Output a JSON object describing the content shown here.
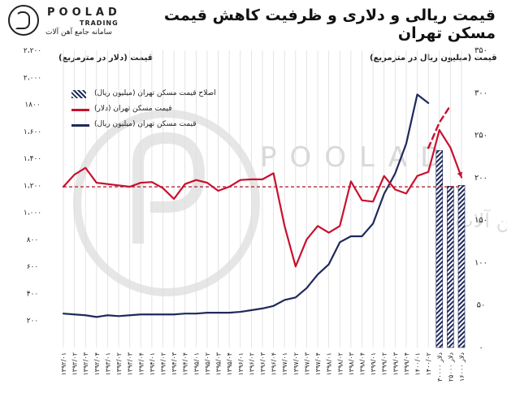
{
  "title": "قیمت ریالی و دلاری و ظرفیت کاهش قیمت مسکن تهران",
  "brand": {
    "name": "POOLAD",
    "sub": "TRADING",
    "tagline": "سامانه جامع آهن آلات",
    "logo_icon": "poolad-logo-icon",
    "watermark_name": "POOLAD",
    "watermark_tagline": "سامانه جامع آهن آلات"
  },
  "colors": {
    "rial": "#1f2a5a",
    "dollar": "#c8102e",
    "reference": "#b3283a",
    "hatch": "#1f2a5a",
    "grid": "#dddddd"
  },
  "chart_data": {
    "type": "line",
    "title": "قیمت ریالی و دلاری و ظرفیت کاهش قیمت مسکن تهران",
    "left_axis": {
      "label": "قیمت (دلار در مترمربع)",
      "ylim": [
        0,
        2200
      ],
      "ticks": [
        0,
        200,
        400,
        600,
        800,
        1000,
        1200,
        1400,
        1600,
        1800,
        2000,
        2200
      ],
      "tick_labels": [
        "",
        "۲۰۰",
        "۴۰۰",
        "۶۰۰",
        "۸۰۰",
        "۱،۰۰۰",
        "۱،۲۰۰",
        "۱،۴۰۰",
        "۱،۶۰۰",
        "۱۸۰۰",
        "۲،۰۰۰",
        "۲،۲۰۰"
      ]
    },
    "right_axis": {
      "label": "قیمت (میلیون ریال در مترمربع)",
      "ylim": [
        0,
        350
      ],
      "ticks": [
        0,
        50,
        100,
        150,
        200,
        250,
        300,
        350
      ],
      "tick_labels": [
        "۰",
        "۵۰",
        "۱۰۰",
        "۱۵۰",
        "۲۰۰",
        "۲۵۰",
        "۳۰۰",
        "۳۵۰"
      ]
    },
    "categories": [
      "۱۳۹۲/۰۱",
      "۱۳۹۲/۰۲",
      "۱۳۹۲/۰۳",
      "۱۳۹۲/۰۴",
      "۱۳۹۳/۰۱",
      "۱۳۹۳/۰۲",
      "۱۳۹۳/۰۳",
      "۱۳۹۳/۰۴",
      "۱۳۹۴/۰۱",
      "۱۳۹۴/۰۲",
      "۱۳۹۴/۰۳",
      "۱۳۹۴/۰۴",
      "۱۳۹۵/۰۱",
      "۱۳۹۵/۰۲",
      "۱۳۹۵/۰۳",
      "۱۳۹۵/۰۴",
      "۱۳۹۶/۰۱",
      "۱۳۹۶/۰۲",
      "۱۳۹۶/۰۳",
      "۱۳۹۶/۰۴",
      "۱۳۹۷/۰۱",
      "۱۳۹۷/۰۲",
      "۱۳۹۷/۰۳",
      "۱۳۹۷/۰۴",
      "۱۳۹۸/۰۱",
      "۱۳۹۸/۰۲",
      "۱۳۹۸/۰۳",
      "۱۳۹۸/۰۴",
      "۱۳۹۹/۰۱",
      "۱۳۹۹/۰۲",
      "۱۳۹۹/۰۳",
      "۱۳۹۹/۰۴",
      "۱۴۰۰/۰۱",
      "۱۴۰۰/۰۲",
      "دلار ۳۰۰۰۰",
      "دلار ۲۵۰۰۰",
      "دلار ۱۶۰۰۰"
    ],
    "series": [
      {
        "name": "قیمت مسکن تهران (میلیون ریال)",
        "axis": "right",
        "style": "solid",
        "values": [
          40,
          39,
          38,
          36,
          38,
          37,
          38,
          39,
          39,
          39,
          39,
          40,
          40,
          41,
          41,
          41,
          42,
          44,
          46,
          49,
          56,
          59,
          70,
          86,
          98,
          124,
          131,
          131,
          146,
          181,
          205,
          240,
          298,
          288,
          null,
          null,
          null
        ]
      },
      {
        "name": "قیمت مسکن تهران (دلار)",
        "axis": "left",
        "style": "solid",
        "values": [
          1190,
          1280,
          1330,
          1220,
          1210,
          1200,
          1190,
          1220,
          1225,
          1180,
          1100,
          1210,
          1240,
          1220,
          1160,
          1190,
          1240,
          1245,
          1245,
          1290,
          900,
          600,
          800,
          900,
          850,
          900,
          1230,
          1090,
          1080,
          1270,
          1170,
          1140,
          1270,
          1300,
          1610,
          null,
          null
        ]
      },
      {
        "name": "قیمت مسکن تهران (دلار) - پیش‌بینی",
        "axis": "left",
        "style": "solid",
        "values": [
          null,
          null,
          null,
          null,
          null,
          null,
          null,
          null,
          null,
          null,
          null,
          null,
          null,
          null,
          null,
          null,
          null,
          null,
          null,
          null,
          null,
          null,
          null,
          null,
          null,
          null,
          null,
          null,
          null,
          null,
          null,
          null,
          null,
          null,
          1610,
          1480,
          1260
        ]
      },
      {
        "name": "قیمت مسکن تهران (میلیون ریال) - پیش‌بینی",
        "axis": "right",
        "style": "dashed",
        "values": [
          null,
          null,
          null,
          null,
          null,
          null,
          null,
          null,
          null,
          null,
          null,
          null,
          null,
          null,
          null,
          null,
          null,
          null,
          null,
          null,
          null,
          null,
          null,
          null,
          null,
          null,
          null,
          null,
          null,
          null,
          null,
          null,
          null,
          235,
          265,
          285,
          null
        ]
      },
      {
        "name": "اصلاح قیمت مسکن تهران (میلیون ریال)",
        "axis": "right",
        "type": "bar",
        "values": [
          null,
          null,
          null,
          null,
          null,
          null,
          null,
          null,
          null,
          null,
          null,
          null,
          null,
          null,
          null,
          null,
          null,
          null,
          null,
          null,
          null,
          null,
          null,
          null,
          null,
          null,
          null,
          null,
          null,
          null,
          null,
          null,
          null,
          null,
          232,
          190,
          191
        ]
      }
    ],
    "reference_line": {
      "axis": "left",
      "value": 1190,
      "style": "dashed"
    },
    "legend": {
      "placement": "top-left",
      "entries": [
        {
          "label": "اصلاح قیمت مسکن تهران (میلیون ریال)",
          "kind": "hatch"
        },
        {
          "label": "قیمت مسکن تهران (دلار)",
          "kind": "dollar"
        },
        {
          "label": "قیمت مسکن تهران (میلیون ریال)",
          "kind": "rial"
        }
      ]
    },
    "grid": "vertical"
  }
}
